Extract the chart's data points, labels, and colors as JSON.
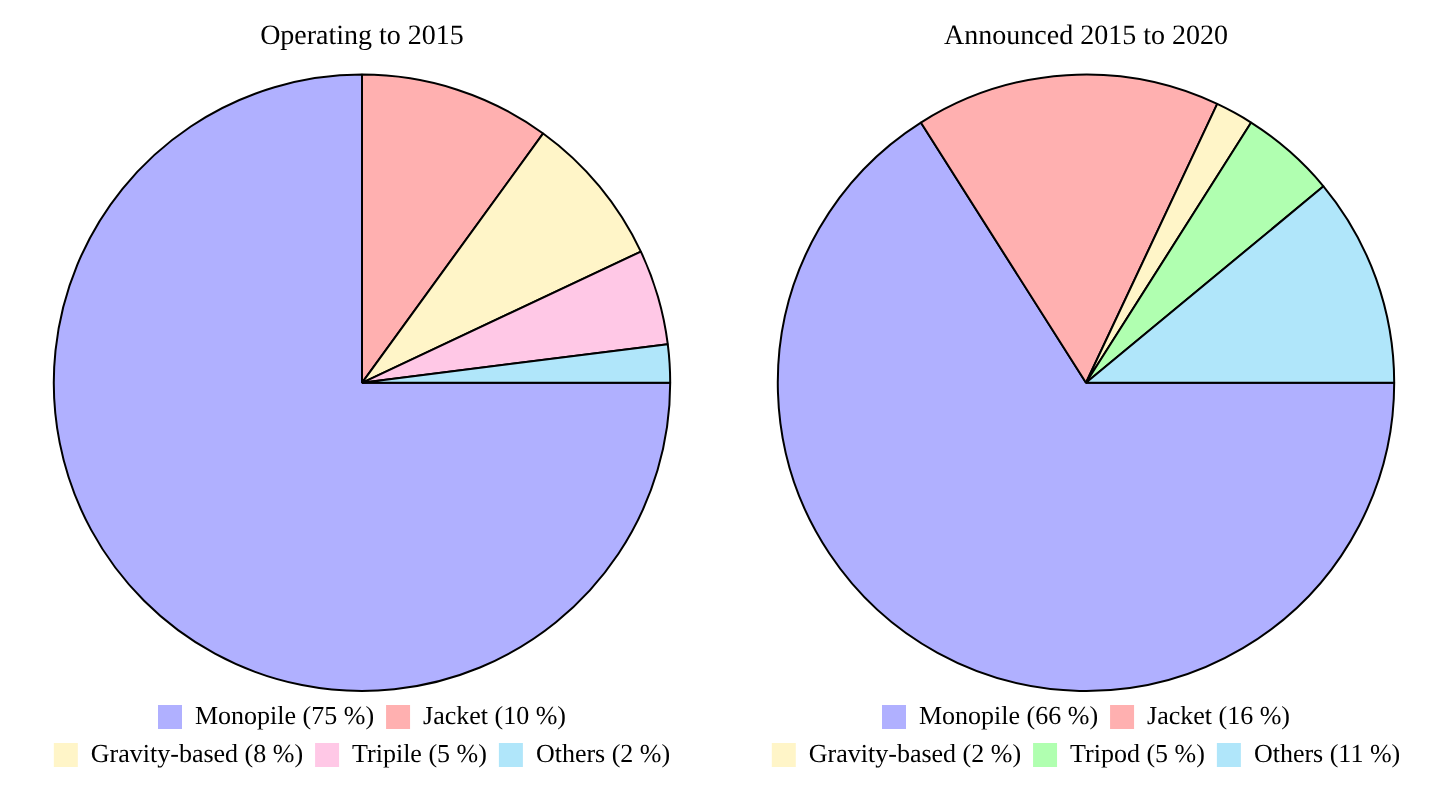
{
  "chart_data": [
    {
      "type": "pie",
      "title": "Operating to 2015",
      "legend": "bottom",
      "categories": [
        "Monopile (75 %)",
        "Jacket (10 %)",
        "Gravity-based (8 %)",
        "Tripile (5 %)",
        "Others (2 %)"
      ],
      "values": [
        75,
        10,
        8,
        5,
        2
      ],
      "colors": [
        "#b0b0ff",
        "#ffb0b0",
        "#fff5c8",
        "#ffc8e6",
        "#b0e6fa"
      ]
    },
    {
      "type": "pie",
      "title": "Announced 2015 to 2020",
      "legend": "bottom",
      "categories": [
        "Monopile (66 %)",
        "Jacket (16 %)",
        "Gravity-based (2 %)",
        "Tripod (5 %)",
        "Others (11 %)"
      ],
      "values": [
        66,
        16,
        2,
        5,
        11
      ],
      "colors": [
        "#b0b0ff",
        "#ffb0b0",
        "#fff5c8",
        "#b0ffb0",
        "#b0e6fa"
      ]
    }
  ]
}
